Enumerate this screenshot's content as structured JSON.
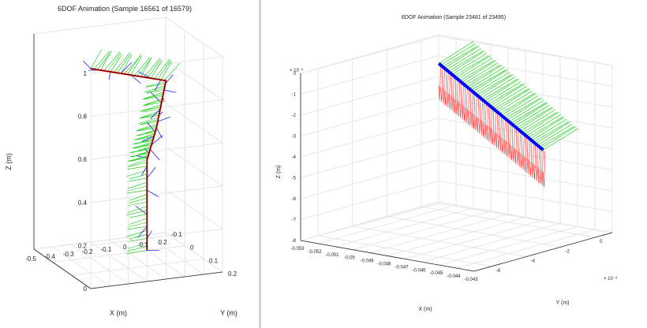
{
  "charts": [
    {
      "title": "6DOF Animation (Sample 16561 of 16579)",
      "xlabel": "X (m)",
      "ylabel": "Y (m)",
      "zlabel": "Z (m)",
      "x_ticks": [
        "-0.5",
        "-0.4",
        "-0.3",
        "-0.2",
        "-0.1",
        "0",
        "0.1",
        "0.2"
      ],
      "y_ticks": [
        "-0.1",
        "0",
        "0.1",
        "0.2"
      ],
      "z_ticks": [
        "0",
        "0.2",
        "0.4",
        "0.6",
        "0.8",
        "1"
      ]
    },
    {
      "title": "6DOF Animation (Sample 23481 of 23495)",
      "xlabel": "X (m)",
      "ylabel": "Y (m)",
      "zlabel": "Z (m)",
      "x_ticks": [
        "-0.053",
        "-0.052",
        "-0.051",
        "-0.05",
        "-0.049",
        "-0.048",
        "-0.047",
        "-0.046",
        "-0.045",
        "-0.044",
        "-0.043"
      ],
      "y_ticks": [
        "0",
        "-2",
        "-4",
        "-6"
      ],
      "z_ticks": [
        "0",
        "-1",
        "-2",
        "-3",
        "-4",
        "-5",
        "-6",
        "-7",
        "-8"
      ],
      "y_exponent": "× 10⁻³",
      "z_exponent": "× 10⁻³"
    }
  ],
  "chart_data": [
    {
      "type": "scatter",
      "projection": "3d",
      "title": "6DOF Animation (Sample 16561 of 16579)",
      "xlabel": "X (m)",
      "ylabel": "Y (m)",
      "zlabel": "Z (m)",
      "xlim": [
        -0.5,
        0.2
      ],
      "ylim": [
        -0.1,
        0.2
      ],
      "zlim": [
        0,
        1
      ],
      "grid": true,
      "series": [
        {
          "color": "#ff0000",
          "points": [
            {
              "x": 0.0,
              "y": 0.0,
              "z": 0.0
            },
            {
              "x": 0.0,
              "y": 0.0,
              "z": 0.42
            },
            {
              "x": 0.0,
              "y": 0.05,
              "z": 0.6
            },
            {
              "x": 0.0,
              "y": 0.1,
              "z": 0.85
            },
            {
              "x": -0.4,
              "y": 0.1,
              "z": 0.95
            }
          ]
        }
      ],
      "colors": {
        "trajectory": "#ff0000",
        "axis_x_frames": "#00cc00",
        "axis_z_frames": "#0000ff"
      }
    },
    {
      "type": "scatter",
      "projection": "3d",
      "title": "6DOF Animation (Sample 23481 of 23495)",
      "xlabel": "X (m)",
      "ylabel": "Y (m)",
      "zlabel": "Z (m)",
      "xlim": [
        -0.053,
        -0.043
      ],
      "ylim": [
        -0.007,
        0.001
      ],
      "zlim": [
        -0.008,
        0.0
      ],
      "grid": true,
      "series": [
        {
          "color": "#0000ff",
          "points": [
            {
              "x": -0.052,
              "y": 0.0,
              "z": -0.001
            },
            {
              "x": -0.044,
              "y": -0.002,
              "z": -0.0035
            }
          ]
        }
      ],
      "colors": {
        "trajectory": "#0000ff",
        "axis_x_frames": "#00cc00",
        "axis_z_frames": "#ff0000"
      }
    }
  ]
}
